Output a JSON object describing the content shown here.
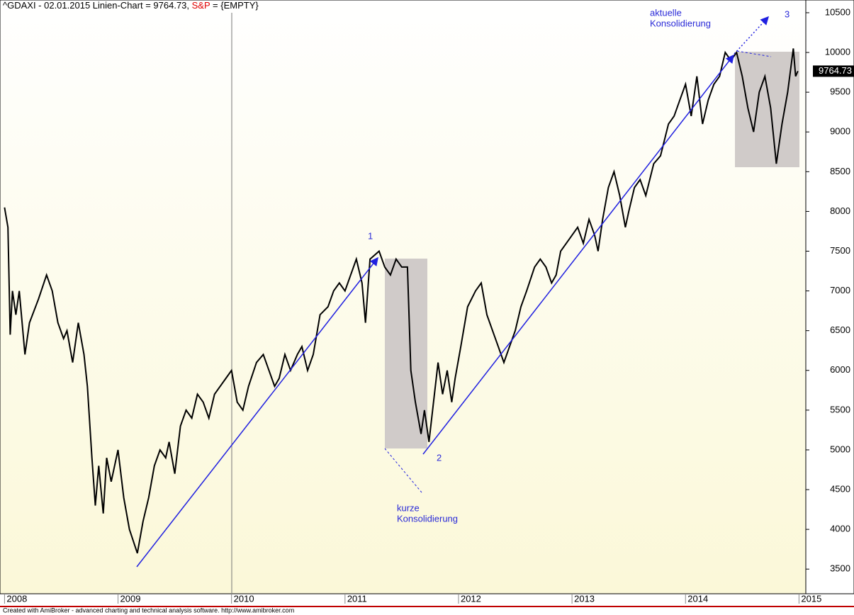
{
  "chart_data": {
    "type": "line",
    "title": "^GDAXI - 02.01.2015 Linien-Chart  = 9764.73,",
    "title_highlight": "S&P",
    "title_rest": "= {EMPTY}",
    "footer": "Created with AmiBroker - advanced charting and technical analysis software. http://www.amibroker.com",
    "annotations": [
      "1",
      "2",
      "3",
      "kurze",
      "Konsolidierung",
      "aktuelle",
      "Konsolidierung"
    ],
    "last_value_label": 9764.73,
    "color": "#000000",
    "xlim": [
      2007.96,
      2015.06
    ],
    "xticks": [
      2008,
      2009,
      2010,
      2011,
      2012,
      2013,
      2014,
      2015
    ],
    "ylim": [
      3190,
      10660
    ],
    "yticks": [
      3500,
      4000,
      4500,
      5000,
      5500,
      6000,
      6500,
      7000,
      7500,
      8000,
      8500,
      9000,
      9500,
      10000,
      10500
    ],
    "x": [
      2008.0,
      2008.03,
      2008.05,
      2008.07,
      2008.1,
      2008.13,
      2008.18,
      2008.22,
      2008.3,
      2008.37,
      2008.42,
      2008.47,
      2008.52,
      2008.55,
      2008.6,
      2008.65,
      2008.7,
      2008.73,
      2008.77,
      2008.8,
      2008.83,
      2008.87,
      2008.9,
      2008.94,
      2008.97,
      2009.0,
      2009.05,
      2009.1,
      2009.17,
      2009.22,
      2009.27,
      2009.32,
      2009.37,
      2009.42,
      2009.45,
      2009.5,
      2009.55,
      2009.6,
      2009.65,
      2009.7,
      2009.75,
      2009.8,
      2009.85,
      2009.9,
      2009.95,
      2010.0,
      2010.05,
      2010.1,
      2010.15,
      2010.22,
      2010.28,
      2010.33,
      2010.38,
      2010.42,
      2010.47,
      2010.52,
      2010.58,
      2010.62,
      2010.67,
      2010.72,
      2010.78,
      2010.85,
      2010.9,
      2010.95,
      2011.0,
      2011.05,
      2011.1,
      2011.15,
      2011.18,
      2011.22,
      2011.3,
      2011.35,
      2011.4,
      2011.45,
      2011.5,
      2011.55,
      2011.58,
      2011.62,
      2011.67,
      2011.7,
      2011.74,
      2011.78,
      2011.82,
      2011.86,
      2011.9,
      2011.94,
      2011.97,
      2012.02,
      2012.08,
      2012.15,
      2012.2,
      2012.25,
      2012.3,
      2012.35,
      2012.4,
      2012.45,
      2012.5,
      2012.55,
      2012.6,
      2012.67,
      2012.72,
      2012.77,
      2012.82,
      2012.86,
      2012.9,
      2012.95,
      2013.0,
      2013.05,
      2013.1,
      2013.15,
      2013.2,
      2013.23,
      2013.27,
      2013.32,
      2013.37,
      2013.42,
      2013.47,
      2013.5,
      2013.55,
      2013.6,
      2013.65,
      2013.72,
      2013.78,
      2013.85,
      2013.9,
      2013.95,
      2014.0,
      2014.05,
      2014.1,
      2014.15,
      2014.2,
      2014.25,
      2014.3,
      2014.35,
      2014.4,
      2014.45,
      2014.5,
      2014.55,
      2014.6,
      2014.65,
      2014.7,
      2014.75,
      2014.8,
      2014.85,
      2014.9,
      2014.95,
      2014.97,
      2014.99
    ],
    "values": [
      8050,
      7800,
      6450,
      7000,
      6700,
      7000,
      6200,
      6600,
      6900,
      7200,
      7000,
      6600,
      6400,
      6500,
      6100,
      6600,
      6200,
      5800,
      4900,
      4300,
      4800,
      4200,
      4900,
      4600,
      4800,
      5000,
      4400,
      4000,
      3700,
      4100,
      4400,
      4800,
      5000,
      4900,
      5100,
      4700,
      5300,
      5500,
      5400,
      5700,
      5600,
      5400,
      5700,
      5800,
      5900,
      6000,
      5600,
      5500,
      5800,
      6100,
      6200,
      6000,
      5800,
      5900,
      6200,
      6000,
      6200,
      6300,
      6000,
      6200,
      6700,
      6800,
      7000,
      7100,
      7000,
      7200,
      7400,
      7100,
      6600,
      7400,
      7500,
      7300,
      7200,
      7400,
      7300,
      7300,
      6000,
      5600,
      5200,
      5500,
      5100,
      5600,
      6100,
      5700,
      6000,
      5600,
      5900,
      6300,
      6800,
      7000,
      7100,
      6700,
      6500,
      6300,
      6100,
      6300,
      6500,
      6800,
      7000,
      7300,
      7400,
      7300,
      7100,
      7200,
      7500,
      7600,
      7700,
      7800,
      7600,
      7900,
      7700,
      7500,
      7900,
      8300,
      8500,
      8200,
      7800,
      8000,
      8300,
      8400,
      8200,
      8600,
      8700,
      9100,
      9200,
      9400,
      9600,
      9200,
      9700,
      9100,
      9400,
      9600,
      9700,
      10000,
      9900,
      10000,
      9700,
      9300,
      9000,
      9500,
      9700,
      9300,
      8600,
      9100,
      9500,
      10050,
      9700,
      9765
    ]
  }
}
